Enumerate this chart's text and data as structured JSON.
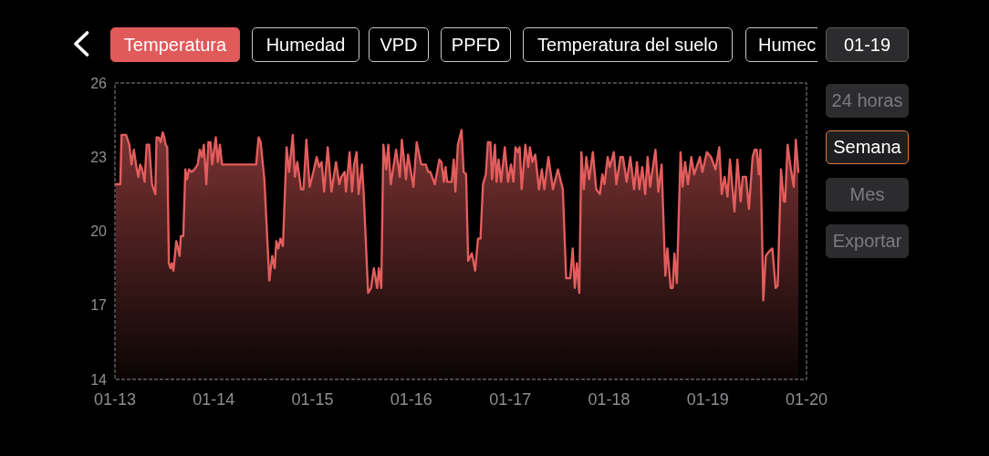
{
  "chart_data": {
    "type": "area",
    "annotations": [
      "Temperatura",
      "Humedad",
      "VPD",
      "PPFD",
      "Temperatura del suelo",
      "Humec",
      "01-19",
      "24 horas",
      "Semana",
      "Mes",
      "Exportar"
    ],
    "x": [
      "--01-13T00:12",
      "--01-13T01:18",
      "--01-13T01:36",
      "--01-13T02:24",
      "--01-13T02:42",
      "--01-13T03:30",
      "--01-13T04:00",
      "--01-13T04:36",
      "--01-13T05:12",
      "--01-13T05:42",
      "--01-13T06:06",
      "--01-13T06:36",
      "--01-13T07:12",
      "--01-13T07:42",
      "--01-13T08:18",
      "--01-13T09:00",
      "--01-13T09:48",
      "--01-13T10:06",
      "--01-13T10:36",
      "--01-13T11:06",
      "--01-13T11:36",
      "--01-13T12:00",
      "--01-13T12:18",
      "--01-13T12:42",
      "--01-13T13:06",
      "--01-13T13:30",
      "--01-13T13:48",
      "--01-13T14:12",
      "--01-13T14:54",
      "--01-13T15:42",
      "--01-13T16:00",
      "--01-13T16:36",
      "--01-13T17:06",
      "--01-13T17:30",
      "--01-13T18:00",
      "--01-13T18:36",
      "--01-13T19:18",
      "--01-13T20:06",
      "--01-13T20:36",
      "--01-13T21:06",
      "--01-13T21:36",
      "--01-13T22:12",
      "--01-13T22:42",
      "--01-13T23:12",
      "--01-13T23:36",
      "--01-14T00:30",
      "--01-14T01:00",
      "--01-14T01:30",
      "--01-14T02:00",
      "--01-14T10:18",
      "--01-14T10:54",
      "--01-14T11:24",
      "--01-14T12:18",
      "--01-14T13:30",
      "--01-14T14:12",
      "--01-14T14:48",
      "--01-14T15:12",
      "--01-14T15:42",
      "--01-14T16:12",
      "--01-14T16:48",
      "--01-14T17:42",
      "--01-14T18:18",
      "--01-14T19:12",
      "--01-14T19:42",
      "--01-14T20:18",
      "--01-14T21:12",
      "--01-14T21:48",
      "--01-14T22:30",
      "--01-14T23:18",
      "--01-15T00:12",
      "--01-15T01:00",
      "--01-15T01:36",
      "--01-15T02:12",
      "--01-15T02:48",
      "--01-15T03:42",
      "--01-15T04:36",
      "--01-15T05:42",
      "--01-15T06:30",
      "--01-15T07:00",
      "--01-15T07:48",
      "--01-15T08:06",
      "--01-15T09:00",
      "--01-15T09:36",
      "--01-15T10:06",
      "--01-15T10:42",
      "--01-15T11:12",
      "--01-15T12:00",
      "--01-15T12:24",
      "--01-15T13:30",
      "--01-15T14:12",
      "--01-15T14:54",
      "--01-15T15:42",
      "--01-15T16:06",
      "--01-15T16:42",
      "--01-15T17:12",
      "--01-15T17:54",
      "--01-15T18:24",
      "--01-15T19:00",
      "--01-15T20:18",
      "--01-15T21:12",
      "--01-15T21:42",
      "--01-15T22:42",
      "--01-15T23:12",
      "--01-16T00:30",
      "--01-16T01:18",
      "--01-16T02:24",
      "--01-16T03:30",
      "--01-16T04:06",
      "--01-16T04:36",
      "--01-16T05:42",
      "--01-16T06:48",
      "--01-16T07:18",
      "--01-16T07:54",
      "--01-16T08:18",
      "--01-16T08:42",
      "--01-16T09:48",
      "--01-16T10:18",
      "--01-16T10:42",
      "--01-16T11:18",
      "--01-16T12:12",
      "--01-16T12:42",
      "--01-16T13:18",
      "--01-16T13:48",
      "--01-16T14:42",
      "--01-16T15:30",
      "--01-16T16:12",
      "--01-16T16:48",
      "--01-16T17:24",
      "--01-16T18:06",
      "--01-16T18:36",
      "--01-16T19:12",
      "--01-16T19:36",
      "--01-16T20:18",
      "--01-16T20:42",
      "--01-16T21:12",
      "--01-16T21:48",
      "--01-16T22:42",
      "--01-16T23:30",
      "--01-17T00:12",
      "--01-17T00:48",
      "--01-17T01:18",
      "--01-17T01:54",
      "--01-17T02:18",
      "--01-17T02:48",
      "--01-17T03:42",
      "--01-17T04:24",
      "--01-17T04:48",
      "--01-17T05:24",
      "--01-17T06:06",
      "--01-17T07:00",
      "--01-17T07:42",
      "--01-17T08:18",
      "--01-17T09:18",
      "--01-17T10:24",
      "--01-17T11:36",
      "--01-17T12:48",
      "--01-17T13:36",
      "--01-17T14:36",
      "--01-17T15:12",
      "--01-17T15:42",
      "--01-17T16:12",
      "--01-17T16:48",
      "--01-17T17:18",
      "--01-17T17:54",
      "--01-17T18:30",
      "--01-17T19:12",
      "--01-17T20:06",
      "--01-17T20:54",
      "--01-17T21:48",
      "--01-17T22:24",
      "--01-17T22:54",
      "--01-17T23:42",
      "--01-18T00:12",
      "--01-18T01:12",
      "--01-18T01:48",
      "--01-18T02:48",
      "--01-18T03:24",
      "--01-18T04:18",
      "--01-18T05:12",
      "--01-18T06:06",
      "--01-18T06:48",
      "--01-18T07:24",
      "--01-18T08:06",
      "--01-18T08:48",
      "--01-18T09:24",
      "--01-18T10:00",
      "--01-18T11:18",
      "--01-18T12:00",
      "--01-18T12:48",
      "--01-18T13:18",
      "--01-18T13:42",
      "--01-18T14:12",
      "--01-18T15:00",
      "--01-18T15:30",
      "--01-18T15:54",
      "--01-18T16:30",
      "--01-18T17:24",
      "--01-18T17:54",
      "--01-18T18:30",
      "--01-18T19:12",
      "--01-18T20:00",
      "--01-18T20:42",
      "--01-18T22:06",
      "--01-18T22:42",
      "--01-18T23:48",
      "--01-19T00:48",
      "--01-19T01:54",
      "--01-19T02:48",
      "--01-19T03:24",
      "--01-19T04:06",
      "--01-19T04:48",
      "--01-19T05:24",
      "--01-19T06:30",
      "--01-19T07:12",
      "--01-19T08:00",
      "--01-19T08:30",
      "--01-19T09:18",
      "--01-19T10:00",
      "--01-19T10:54",
      "--01-19T11:24",
      "--01-19T11:54",
      "--01-19T12:24",
      "--01-19T12:48",
      "--01-19T13:30",
      "--01-19T14:06",
      "--01-19T15:00",
      "--01-19T15:42",
      "--01-19T16:30",
      "--01-19T17:00",
      "--01-19T17:48",
      "--01-19T18:30",
      "--01-19T18:48",
      "--01-19T19:24",
      "--01-19T20:12",
      "--01-19T20:54",
      "--01-19T21:24",
      "--01-19T22:00"
    ],
    "series": [
      {
        "color": "#e35d5d",
        "values": [
          21.9,
          21.9,
          23.9,
          23.9,
          23.9,
          23.5,
          22.7,
          23.3,
          22.6,
          22.2,
          22.7,
          22.5,
          22.0,
          23.5,
          23.5,
          21.9,
          21.5,
          23.8,
          23.8,
          23.6,
          24.0,
          23.8,
          23.5,
          23.4,
          18.7,
          18.5,
          18.7,
          18.4,
          19.6,
          19.0,
          19.8,
          19.8,
          22.5,
          22.1,
          22.5,
          22.4,
          22.5,
          22.7,
          23.3,
          23.0,
          23.5,
          21.9,
          23.6,
          23.6,
          22.7,
          23.8,
          22.8,
          23.5,
          22.7,
          22.7,
          23.8,
          23.6,
          22.1,
          18.0,
          19.0,
          18.5,
          19.6,
          19.3,
          19.7,
          19.4,
          23.4,
          22.4,
          23.9,
          22.2,
          22.8,
          21.7,
          21.7,
          23.7,
          21.8,
          22.4,
          23.0,
          22.6,
          22.8,
          21.6,
          23.4,
          21.6,
          22.8,
          21.9,
          22.2,
          22.4,
          21.6,
          23.2,
          21.6,
          22.7,
          23.2,
          21.5,
          22.7,
          21.6,
          17.5,
          17.7,
          18.5,
          17.7,
          18.5,
          17.7,
          23.5,
          22.5,
          23.5,
          21.9,
          23.3,
          22.2,
          23.7,
          22.1,
          23.1,
          21.8,
          23.6,
          22.7,
          22.7,
          22.4,
          22.4,
          21.9,
          22.9,
          22.8,
          22.0,
          22.6,
          22.0,
          22.0,
          22.9,
          21.6,
          23.5,
          24.1,
          22.4,
          22.3,
          18.8,
          19.1,
          18.4,
          19.7,
          19.7,
          21.9,
          22.3,
          23.6,
          23.6,
          22.1,
          23.5,
          22.0,
          22.9,
          22.0,
          23.4,
          22.0,
          22.7,
          22.0,
          23.4,
          23.2,
          23.4,
          21.7,
          23.5,
          22.6,
          23.4,
          22.8,
          23.1,
          21.7,
          22.5,
          21.7,
          23.0,
          21.7,
          22.5,
          21.7,
          18.1,
          18.1,
          19.3,
          17.7,
          18.7,
          17.5,
          23.2,
          21.7,
          23.0,
          22.1,
          23.2,
          21.7,
          21.5,
          22.3,
          21.9,
          23.0,
          22.6,
          23.2,
          21.9,
          23.0,
          23.0,
          22.0,
          23.0,
          21.7,
          22.8,
          21.7,
          22.6,
          21.5,
          23.0,
          21.8,
          23.3,
          21.6,
          22.7,
          20.2,
          18.2,
          19.3,
          17.7,
          17.7,
          19.1,
          17.9,
          23.2,
          21.8,
          22.8,
          21.9,
          23.0,
          22.3,
          23.0,
          22.4,
          23.2,
          23.0,
          22.5,
          23.4,
          21.5,
          22.2,
          21.4,
          22.9,
          20.8,
          22.9,
          21.2,
          22.2,
          22.2,
          20.9,
          23.0,
          23.3,
          23.3,
          22.3,
          23.3,
          17.2,
          19.0,
          19.2,
          19.3,
          17.7,
          17.8,
          22.5,
          21.2,
          21.2,
          23.5,
          22.5,
          21.8,
          23.7,
          22.4
        ]
      }
    ],
    "xlim": [
      "--01-13",
      "--01-20"
    ],
    "xticks": [
      {
        "value": "--01-13",
        "label": "01-13"
      },
      {
        "value": "--01-14",
        "label": "01-14"
      },
      {
        "value": "--01-15",
        "label": "01-15"
      },
      {
        "value": "--01-16",
        "label": "01-16"
      },
      {
        "value": "--01-17",
        "label": "01-17"
      },
      {
        "value": "--01-18",
        "label": "01-18"
      },
      {
        "value": "--01-19",
        "label": "01-19"
      },
      {
        "value": "--01-20",
        "label": "01-20"
      }
    ],
    "ylim": [
      14,
      26
    ],
    "yticks": [
      14,
      17,
      20,
      23,
      26
    ]
  }
}
